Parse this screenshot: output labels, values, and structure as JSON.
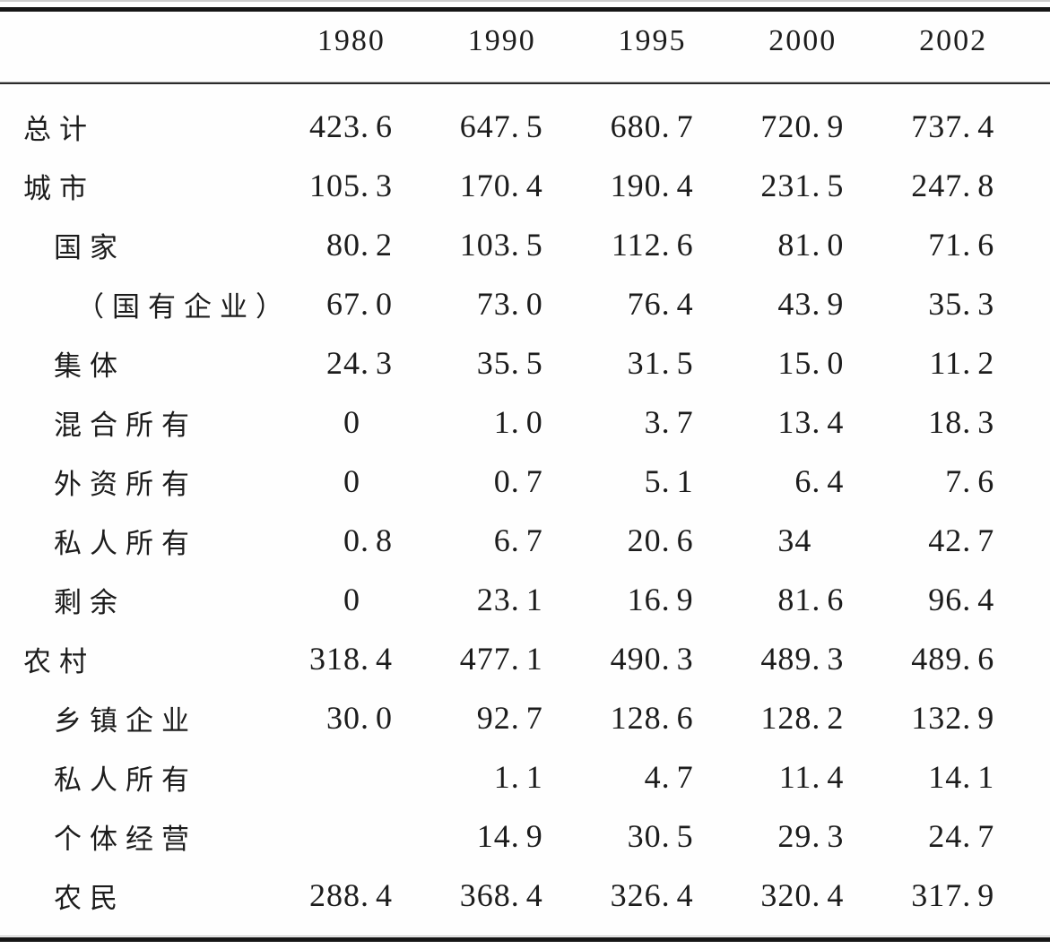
{
  "table": {
    "columns": [
      "1980",
      "1990",
      "1995",
      "2000",
      "2002"
    ],
    "rows": [
      {
        "label": "总计",
        "indent": 0,
        "values": [
          "423.6",
          "647.5",
          "680.7",
          "720.9",
          "737.4"
        ]
      },
      {
        "label": "城市",
        "indent": 0,
        "values": [
          "105.3",
          "170.4",
          "190.4",
          "231.5",
          "247.8"
        ]
      },
      {
        "label": "国家",
        "indent": 1,
        "values": [
          "80.2",
          "103.5",
          "112.6",
          "81.0",
          "71.6"
        ]
      },
      {
        "label": "（国有企业）",
        "indent": 2,
        "values": [
          "67.0",
          "73.0",
          "76.4",
          "43.9",
          "35.3"
        ]
      },
      {
        "label": "集体",
        "indent": 1,
        "values": [
          "24.3",
          "35.5",
          "31.5",
          "15.0",
          "11.2"
        ]
      },
      {
        "label": "混合所有",
        "indent": 1,
        "values": [
          "0",
          "1.0",
          "3.7",
          "13.4",
          "18.3"
        ]
      },
      {
        "label": "外资所有",
        "indent": 1,
        "values": [
          "0",
          "0.7",
          "5.1",
          "6.4",
          "7.6"
        ]
      },
      {
        "label": "私人所有",
        "indent": 1,
        "values": [
          "0.8",
          "6.7",
          "20.6",
          "34",
          "42.7"
        ]
      },
      {
        "label": "剩余",
        "indent": 1,
        "values": [
          "0",
          "23.1",
          "16.9",
          "81.6",
          "96.4"
        ]
      },
      {
        "label": "农村",
        "indent": 0,
        "values": [
          "318.4",
          "477.1",
          "490.3",
          "489.3",
          "489.6"
        ]
      },
      {
        "label": "乡镇企业",
        "indent": 1,
        "values": [
          "30.0",
          "92.7",
          "128.6",
          "128.2",
          "132.9"
        ]
      },
      {
        "label": "私人所有",
        "indent": 1,
        "values": [
          "",
          "1.1",
          "4.7",
          "11.4",
          "14.1"
        ]
      },
      {
        "label": "个体经营",
        "indent": 1,
        "values": [
          "",
          "14.9",
          "30.5",
          "29.3",
          "24.7"
        ]
      },
      {
        "label": "农民",
        "indent": 1,
        "values": [
          "288.4",
          "368.4",
          "326.4",
          "320.4",
          "317.9"
        ]
      }
    ]
  },
  "colors": {
    "text": "#1c1c1c",
    "rule": "#161616",
    "scanline": "#c8c8c8"
  }
}
